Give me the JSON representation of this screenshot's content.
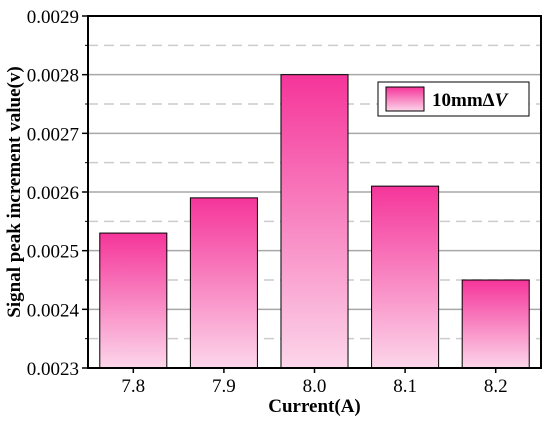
{
  "chart_data": {
    "type": "bar",
    "categories": [
      "7.8",
      "7.9",
      "8.0",
      "8.1",
      "8.2"
    ],
    "values": [
      0.00253,
      0.00259,
      0.0028,
      0.00261,
      0.00245
    ],
    "xlabel": "Current(A)",
    "ylabel": "Signal peak increment value(v)",
    "ylim": [
      0.0023,
      0.0029
    ],
    "yticks": [
      "0.0023",
      "0.0024",
      "0.0025",
      "0.0026",
      "0.0027",
      "0.0028",
      "0.0029"
    ],
    "ytick_values": [
      0.0023,
      0.0024,
      0.0025,
      0.0026,
      0.0027,
      0.0028,
      0.0029
    ],
    "minor_grid_values": [
      0.00235,
      0.00245,
      0.00255,
      0.00265,
      0.00275,
      0.00285
    ],
    "grid": true,
    "legend": {
      "position": "top-right",
      "entries": [
        {
          "prefix": "10mm",
          "delta": "Δ",
          "var": "V"
        }
      ]
    },
    "colors": {
      "bar_top": "#f5359a",
      "bar_bottom": "#fcd6ea",
      "bar_edge": "#000000",
      "major_grid": "#a8a8a8",
      "minor_grid": "#cccccc"
    }
  }
}
